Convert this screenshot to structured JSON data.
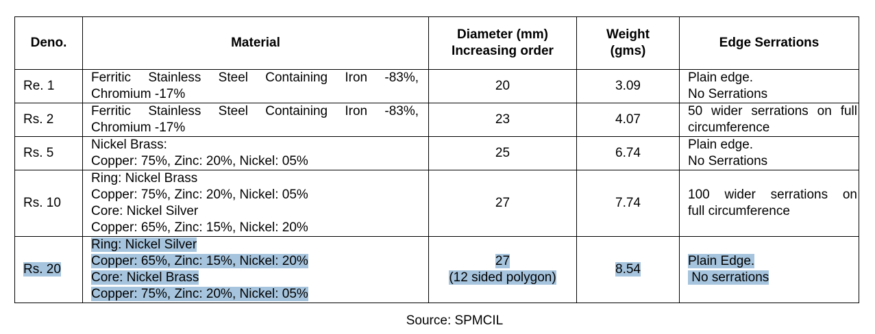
{
  "table": {
    "headers": {
      "deno": "Deno.",
      "material": "Material",
      "diameter_1": "Diameter (mm)",
      "diameter_2": "Increasing order",
      "weight_1": "Weight",
      "weight_2": "(gms)",
      "edge": "Edge Serrations"
    },
    "rows": [
      {
        "deno": "Re. 1",
        "material": [
          "Ferritic Stainless Steel Containing Iron -83%,",
          "Chromium -17%"
        ],
        "diameter": [
          "20"
        ],
        "weight": "3.09",
        "edge": [
          "Plain edge.",
          "No Serrations"
        ]
      },
      {
        "deno": "Rs. 2",
        "material": [
          "Ferritic Stainless Steel Containing Iron -83%,",
          "Chromium -17%"
        ],
        "diameter": [
          "23"
        ],
        "weight": "4.07",
        "edge": [
          "50 wider serrations on full",
          "circumference"
        ]
      },
      {
        "deno": "Rs. 5",
        "material": [
          "Nickel Brass:",
          "Copper: 75%, Zinc: 20%, Nickel: 05%"
        ],
        "diameter": [
          "25"
        ],
        "weight": "6.74",
        "edge": [
          "Plain edge.",
          "No Serrations"
        ]
      },
      {
        "deno": "Rs. 10",
        "material": [
          "Ring: Nickel Brass",
          "Copper: 75%, Zinc: 20%, Nickel: 05%",
          "Core: Nickel Silver",
          "Copper: 65%, Zinc: 15%, Nickel: 20%"
        ],
        "diameter": [
          "27"
        ],
        "weight": "7.74",
        "edge": [
          "100 wider serrations on",
          "full circumference"
        ]
      },
      {
        "deno": "Rs. 20",
        "material": [
          "Ring: Nickel Silver",
          "Copper: 65%, Zinc: 15%, Nickel: 20%",
          "Core: Nickel Brass",
          "Copper: 75%, Zinc: 20%, Nickel: 05%"
        ],
        "diameter": [
          "27",
          "(12 sided polygon)"
        ],
        "weight": "8.54",
        "edge": [
          "Plain Edge.",
          " No serrations"
        ]
      }
    ]
  },
  "source": "Source:  SPMCIL",
  "highlight_color": "#a6c4dd"
}
